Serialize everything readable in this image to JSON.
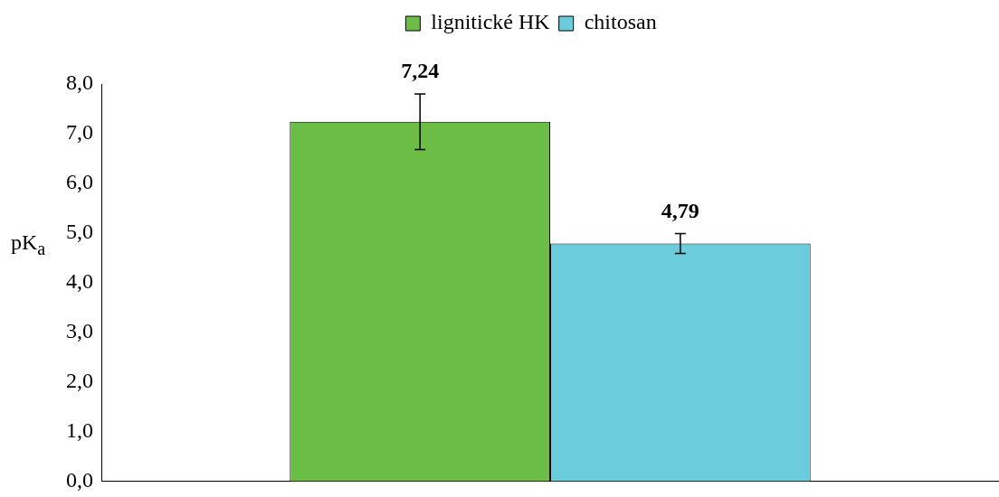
{
  "chart_data": {
    "type": "bar",
    "ylabel": "pK$_{a}$",
    "categories": [
      null
    ],
    "series": [
      {
        "name": "lignitické HK",
        "color": "#6bbd45",
        "values": [
          7.24
        ],
        "errors": [
          0.56
        ],
        "value_labels": [
          "7,24"
        ]
      },
      {
        "name": "chitosan",
        "color": "#6bcddb",
        "values": [
          4.79
        ],
        "errors": [
          0.2
        ],
        "value_labels": [
          "4,79"
        ]
      }
    ],
    "ylim": [
      0,
      8
    ],
    "yticks": [
      {
        "value": 0,
        "label": "0,0"
      },
      {
        "value": 1,
        "label": "1,0"
      },
      {
        "value": 2,
        "label": "2,0"
      },
      {
        "value": 3,
        "label": "3,0"
      },
      {
        "value": 4,
        "label": "4,0"
      },
      {
        "value": 5,
        "label": "5,0"
      },
      {
        "value": 6,
        "label": "6,0"
      },
      {
        "value": 7,
        "label": "7,0"
      },
      {
        "value": 8,
        "label": "8,0"
      }
    ],
    "grid": false,
    "legend": "top"
  }
}
